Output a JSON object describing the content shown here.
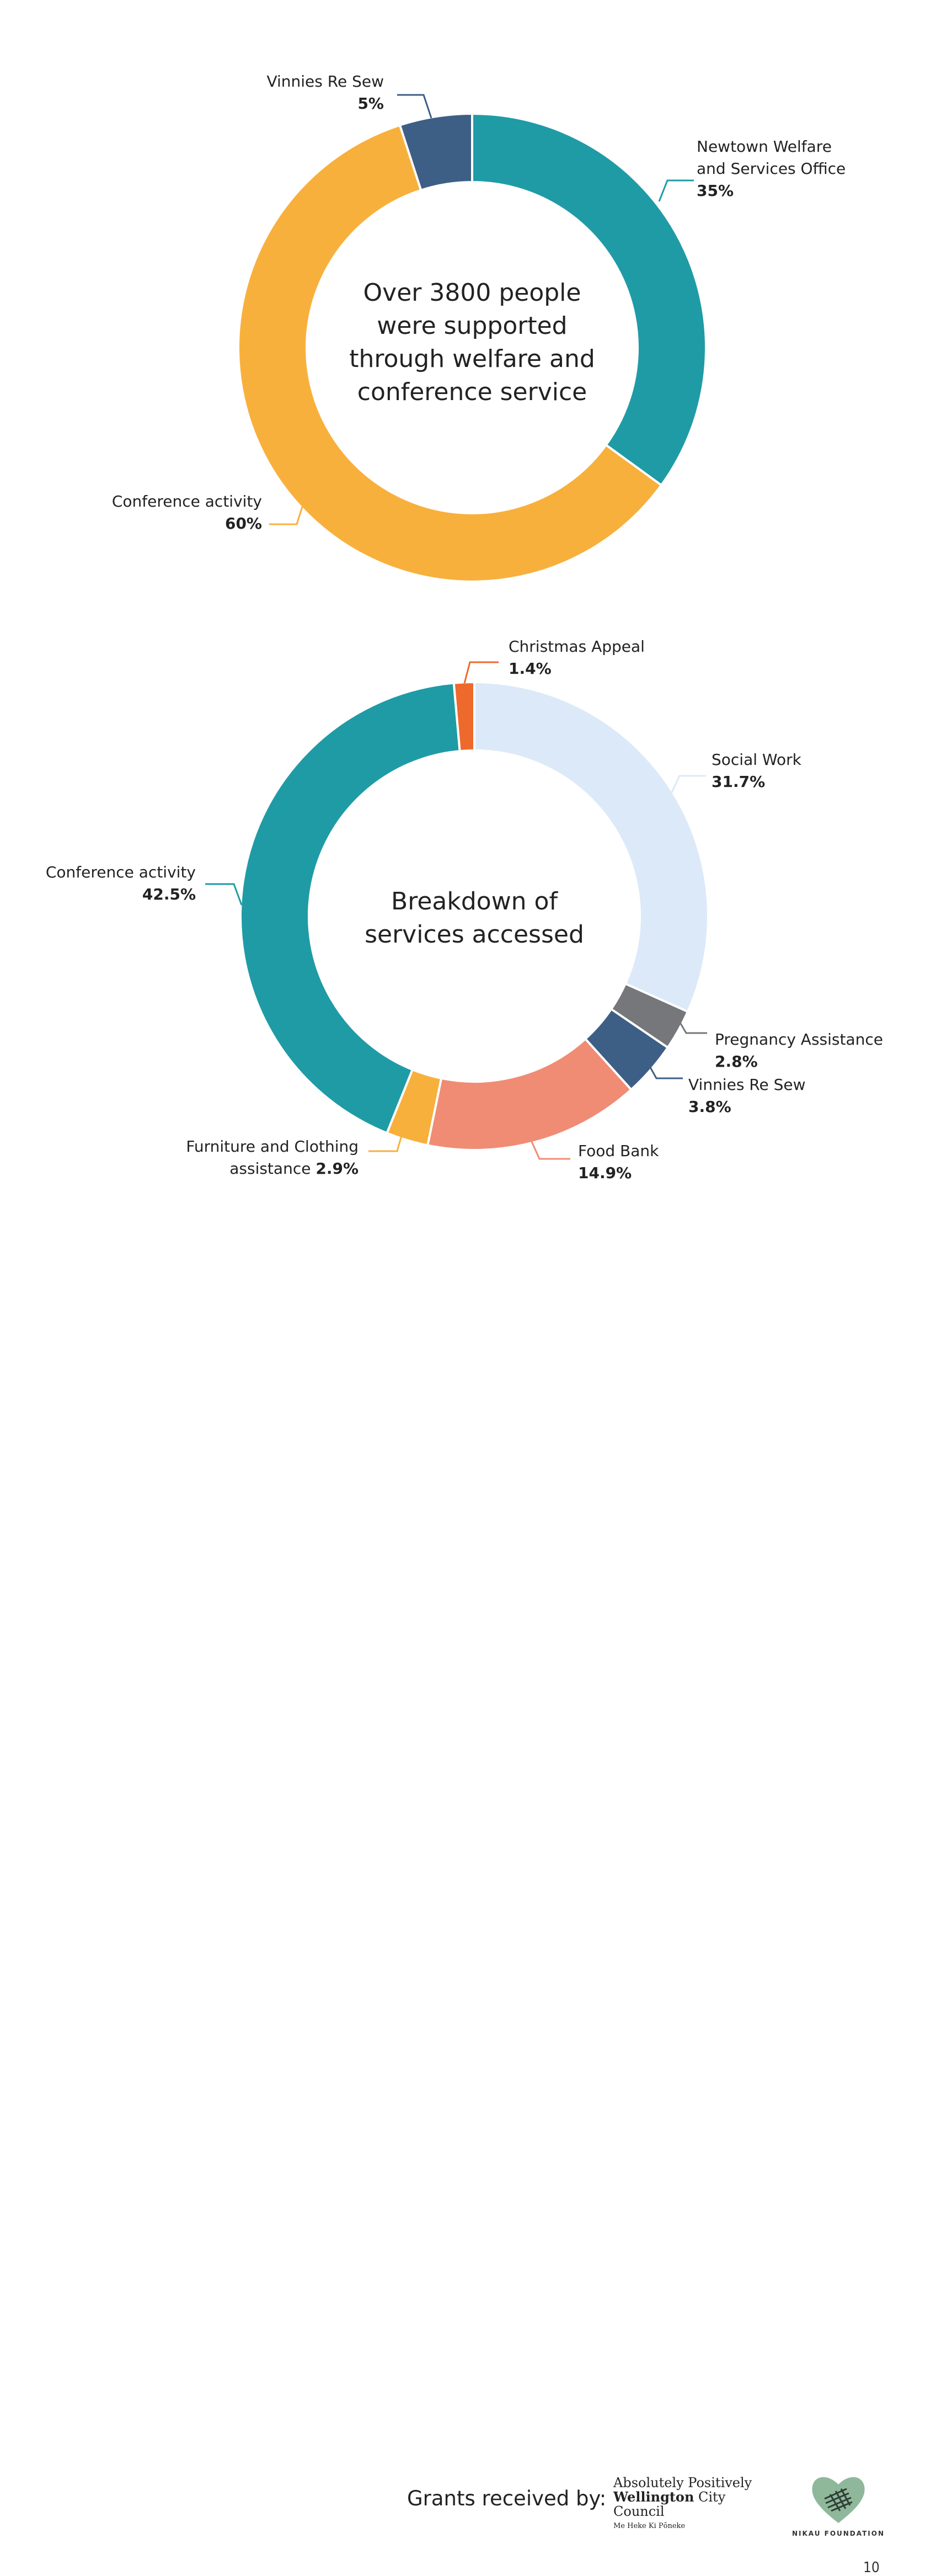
{
  "chart_data": [
    {
      "type": "donut",
      "title": "Over 3800 people were supported through welfare and conference service",
      "center_text": [
        "Over 3800 people",
        "were supported",
        "through welfare and",
        "conference service"
      ],
      "slices": [
        {
          "name": "Newtown Welfare and Services Office",
          "label_lines": [
            "Newtown Welfare",
            "and Services Office"
          ],
          "value": 35,
          "value_label": "35%",
          "color": "#1f9ba6"
        },
        {
          "name": "Conference activity",
          "label_lines": [
            "Conference activity"
          ],
          "value": 60,
          "value_label": "60%",
          "color": "#f8b03c"
        },
        {
          "name": "Vinnies Re Sew",
          "label_lines": [
            "Vinnies Re Sew"
          ],
          "value": 5,
          "value_label": "5%",
          "color": "#3e5f85"
        }
      ]
    },
    {
      "type": "donut",
      "title": "Breakdown of services accessed",
      "center_text": [
        "Breakdown of",
        "services accessed"
      ],
      "slices": [
        {
          "name": "Social Work",
          "label_lines": [
            "Social Work"
          ],
          "value": 31.7,
          "value_label": "31.7%",
          "color": "#dce9f8"
        },
        {
          "name": "Pregnancy Assistance",
          "label_lines": [
            "Pregnancy Assistance"
          ],
          "value": 2.8,
          "value_label": "2.8%",
          "color": "#76777b"
        },
        {
          "name": "Vinnies Re Sew",
          "label_lines": [
            "Vinnies Re Sew"
          ],
          "value": 3.8,
          "value_label": "3.8%",
          "color": "#3e5f85"
        },
        {
          "name": "Food Bank",
          "label_lines": [
            "Food Bank"
          ],
          "value": 14.9,
          "value_label": "14.9%",
          "color": "#f08c74"
        },
        {
          "name": "Furniture and Clothing assistance",
          "label_lines": [
            "Furniture and Clothing",
            "assistance"
          ],
          "value": 2.9,
          "value_label": "2.9%",
          "color": "#f8b03c"
        },
        {
          "name": "Conference activity",
          "label_lines": [
            "Conference activity"
          ],
          "value": 42.5,
          "value_label": "42.5%",
          "color": "#1f9ba6"
        },
        {
          "name": "Christmas Appeal",
          "label_lines": [
            "Christmas Appeal"
          ],
          "value": 1.4,
          "value_label": "1.4%",
          "color": "#ee6a2c"
        }
      ]
    }
  ],
  "footer": {
    "grants_label": "Grants received by:",
    "wcc_line1": "Absolutely Positively",
    "wcc_line2_bold": "Wellington",
    "wcc_line2_rest": " City Council",
    "wcc_line3": "Me Heke Ki Pōneke",
    "nikau_label": "NIKAU FOUNDATION"
  },
  "page_number": "10"
}
